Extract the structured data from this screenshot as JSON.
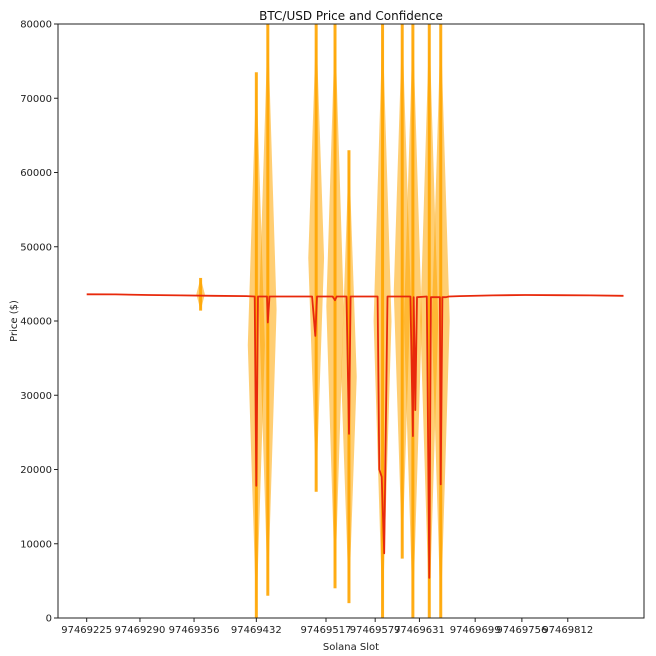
{
  "chart_data": {
    "type": "line",
    "title": "BTC/USD Price and Confidence",
    "xlabel": "Solana Slot",
    "ylabel": "Price ($)",
    "ylim": [
      0,
      80000
    ],
    "xlim": [
      97469190,
      97469905
    ],
    "grid": false,
    "legend": "none",
    "x_ticks": [
      97469225,
      97469290,
      97469356,
      97469432,
      97469517,
      97469577,
      97469631,
      97469699,
      97469756,
      97469812
    ],
    "y_ticks": [
      0,
      10000,
      20000,
      30000,
      40000,
      50000,
      60000,
      70000,
      80000
    ],
    "colors": {
      "price": "#e8290b",
      "confidence": "#ffa500"
    },
    "series": [
      {
        "role": "price",
        "x": [
          97469225,
          97469260,
          97469300,
          97469340,
          97469380,
          97469420,
          97469430,
          97469432,
          97469434,
          97469440,
          97469445,
          97469446,
          97469448,
          97469452,
          97469500,
          97469504,
          97469506,
          97469509,
          97469525,
          97469528,
          97469530,
          97469542,
          97469545,
          97469547,
          97469580,
          97469582,
          97469585,
          97469588,
          97469592,
          97469595,
          97469598,
          97469620,
          97469623,
          97469624,
          97469626,
          97469628,
          97469640,
          97469643,
          97469645,
          97469647,
          97469656,
          97469657,
          97469659,
          97469662,
          97469663,
          97469665,
          97469667,
          97469680,
          97469720,
          97469760,
          97469800,
          97469840,
          97469880
        ],
        "y": [
          43600,
          43580,
          43500,
          43450,
          43400,
          43350,
          43300,
          17800,
          43300,
          43300,
          43300,
          39800,
          43300,
          43300,
          43300,
          38000,
          43300,
          43300,
          43300,
          42800,
          43300,
          43300,
          24800,
          43300,
          43300,
          20000,
          19000,
          8700,
          43300,
          43300,
          43300,
          43300,
          24500,
          43200,
          28000,
          43200,
          43300,
          5400,
          43200,
          43200,
          43200,
          18000,
          43200,
          43200,
          43200,
          43250,
          43300,
          43350,
          43450,
          43500,
          43480,
          43450,
          43400
        ]
      }
    ],
    "confidence_spikes": [
      {
        "x": 97469364,
        "low": 41400,
        "high": 45800
      },
      {
        "x": 97469432,
        "low": 0,
        "high": 73500
      },
      {
        "x": 97469446,
        "low": 3000,
        "high": 80000
      },
      {
        "x": 97469505,
        "low": 17000,
        "high": 80000
      },
      {
        "x": 97469528,
        "low": 4000,
        "high": 80000
      },
      {
        "x": 97469545,
        "low": 2000,
        "high": 63000
      },
      {
        "x": 97469586,
        "low": 0,
        "high": 80000
      },
      {
        "x": 97469610,
        "low": 8000,
        "high": 80000
      },
      {
        "x": 97469623,
        "low": 0,
        "high": 80000
      },
      {
        "x": 97469643,
        "low": 0,
        "high": 80000
      },
      {
        "x": 97469657,
        "low": 0,
        "high": 80000
      }
    ]
  }
}
